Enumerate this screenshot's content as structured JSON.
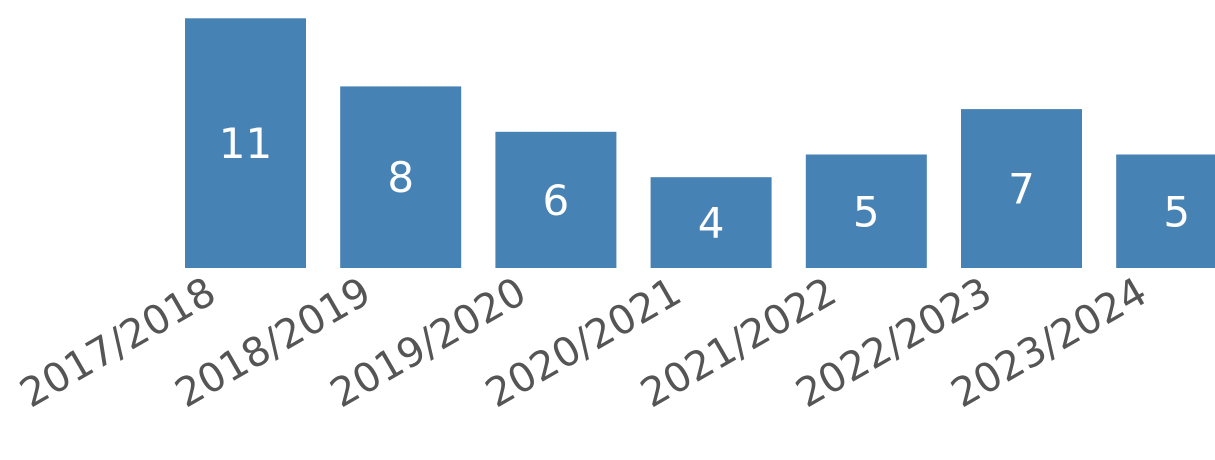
{
  "chart_data": {
    "type": "bar",
    "title": "",
    "xlabel": "",
    "ylabel": "",
    "categories": [
      "2017/2018",
      "2018/2019",
      "2019/2020",
      "2020/2021",
      "2021/2022",
      "2022/2023",
      "2023/2024"
    ],
    "values": [
      11,
      8,
      6,
      4,
      5,
      7,
      5
    ],
    "ylim": [
      0,
      11
    ],
    "grid": false,
    "legend": "none",
    "colors": {
      "bar": "#4682b4",
      "bar_label": "#ffffff",
      "tick_label": "#555555"
    }
  }
}
